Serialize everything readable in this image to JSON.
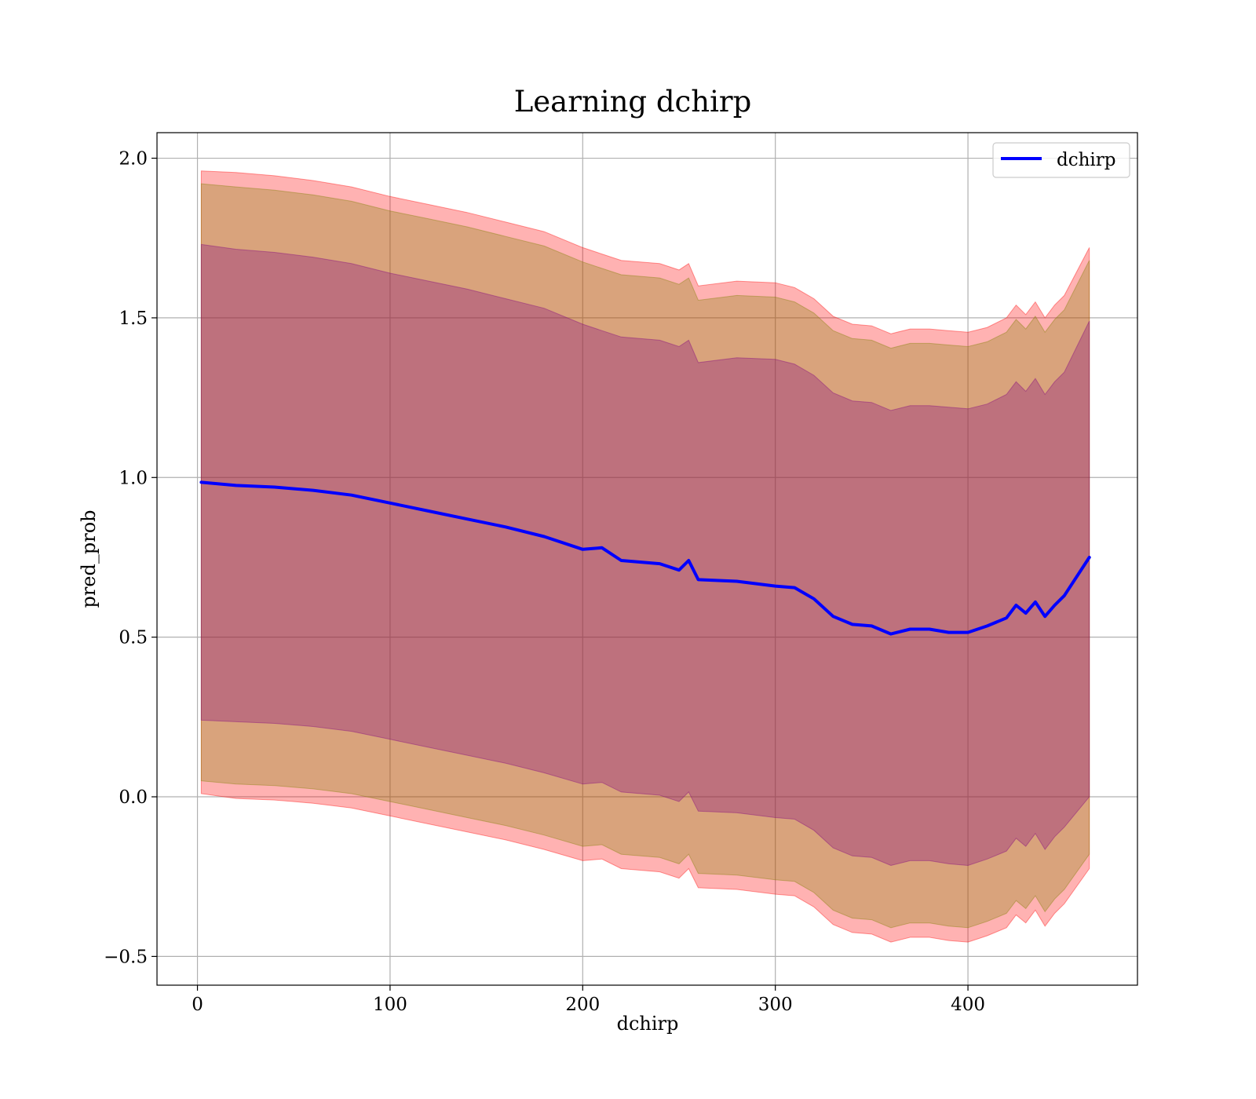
{
  "chart_data": {
    "type": "line",
    "title": "Learning dchirp",
    "xlabel": "dchirp",
    "ylabel": "pred_prob",
    "xlim": [
      -21,
      488
    ],
    "ylim": [
      -0.59,
      2.08
    ],
    "grid": true,
    "legend": {
      "placement": "top-right",
      "entries": [
        "dchirp"
      ]
    },
    "x_ticks": [
      {
        "value": 0,
        "label": "0"
      },
      {
        "value": 100,
        "label": "100"
      },
      {
        "value": 200,
        "label": "200"
      },
      {
        "value": 300,
        "label": "300"
      },
      {
        "value": 400,
        "label": "400"
      }
    ],
    "y_ticks": [
      {
        "value": -0.5,
        "label": "−0.5"
      },
      {
        "value": 0.0,
        "label": "0.0"
      },
      {
        "value": 0.5,
        "label": "0.5"
      },
      {
        "value": 1.0,
        "label": "1.0"
      },
      {
        "value": 1.5,
        "label": "1.5"
      },
      {
        "value": 2.0,
        "label": "2.0"
      }
    ],
    "x": [
      2,
      20,
      40,
      60,
      80,
      100,
      120,
      140,
      160,
      180,
      200,
      210,
      220,
      240,
      250,
      255,
      260,
      280,
      300,
      310,
      320,
      330,
      340,
      350,
      360,
      370,
      380,
      390,
      400,
      410,
      420,
      425,
      430,
      435,
      440,
      445,
      450,
      463
    ],
    "series": [
      {
        "name": "dchirp",
        "color": "#0000ff",
        "y": [
          0.985,
          0.975,
          0.97,
          0.96,
          0.945,
          0.92,
          0.895,
          0.87,
          0.845,
          0.815,
          0.775,
          0.78,
          0.74,
          0.73,
          0.71,
          0.74,
          0.68,
          0.675,
          0.66,
          0.655,
          0.62,
          0.565,
          0.54,
          0.535,
          0.51,
          0.525,
          0.525,
          0.515,
          0.515,
          0.535,
          0.56,
          0.6,
          0.575,
          0.61,
          0.565,
          0.6,
          0.63,
          0.75
        ]
      }
    ],
    "bands": [
      {
        "color": "#ff0000",
        "opacity": 0.3,
        "upper": [
          1.96,
          1.955,
          1.945,
          1.93,
          1.91,
          1.88,
          1.855,
          1.83,
          1.8,
          1.77,
          1.72,
          1.7,
          1.68,
          1.67,
          1.65,
          1.67,
          1.6,
          1.615,
          1.61,
          1.595,
          1.56,
          1.505,
          1.48,
          1.475,
          1.45,
          1.465,
          1.465,
          1.46,
          1.455,
          1.47,
          1.5,
          1.54,
          1.51,
          1.55,
          1.5,
          1.54,
          1.57,
          1.72
        ],
        "lower": [
          0.01,
          -0.005,
          -0.01,
          -0.02,
          -0.035,
          -0.06,
          -0.085,
          -0.11,
          -0.135,
          -0.165,
          -0.2,
          -0.195,
          -0.225,
          -0.235,
          -0.255,
          -0.225,
          -0.285,
          -0.29,
          -0.305,
          -0.31,
          -0.345,
          -0.4,
          -0.425,
          -0.43,
          -0.455,
          -0.44,
          -0.44,
          -0.45,
          -0.455,
          -0.435,
          -0.41,
          -0.37,
          -0.395,
          -0.355,
          -0.405,
          -0.365,
          -0.335,
          -0.225
        ]
      },
      {
        "color": "#808000",
        "opacity": 0.3,
        "upper": [
          1.92,
          1.91,
          1.9,
          1.885,
          1.865,
          1.835,
          1.81,
          1.785,
          1.755,
          1.725,
          1.675,
          1.655,
          1.635,
          1.625,
          1.605,
          1.625,
          1.555,
          1.57,
          1.565,
          1.55,
          1.515,
          1.46,
          1.435,
          1.43,
          1.405,
          1.42,
          1.42,
          1.415,
          1.41,
          1.425,
          1.455,
          1.495,
          1.465,
          1.505,
          1.455,
          1.495,
          1.525,
          1.68
        ],
        "lower": [
          0.05,
          0.04,
          0.035,
          0.025,
          0.01,
          -0.015,
          -0.04,
          -0.065,
          -0.09,
          -0.12,
          -0.155,
          -0.15,
          -0.18,
          -0.19,
          -0.21,
          -0.18,
          -0.24,
          -0.245,
          -0.26,
          -0.265,
          -0.3,
          -0.355,
          -0.38,
          -0.385,
          -0.41,
          -0.395,
          -0.395,
          -0.405,
          -0.41,
          -0.39,
          -0.365,
          -0.325,
          -0.35,
          -0.31,
          -0.36,
          -0.32,
          -0.29,
          -0.18
        ]
      },
      {
        "color": "#800080",
        "opacity": 0.3,
        "upper": [
          1.73,
          1.715,
          1.705,
          1.69,
          1.67,
          1.64,
          1.615,
          1.59,
          1.56,
          1.53,
          1.48,
          1.46,
          1.44,
          1.43,
          1.41,
          1.43,
          1.36,
          1.375,
          1.37,
          1.355,
          1.32,
          1.265,
          1.24,
          1.235,
          1.21,
          1.225,
          1.225,
          1.22,
          1.215,
          1.23,
          1.26,
          1.3,
          1.27,
          1.31,
          1.26,
          1.3,
          1.33,
          1.49
        ],
        "lower": [
          0.24,
          0.235,
          0.23,
          0.22,
          0.205,
          0.18,
          0.155,
          0.13,
          0.105,
          0.075,
          0.04,
          0.045,
          0.015,
          0.005,
          -0.015,
          0.015,
          -0.045,
          -0.05,
          -0.065,
          -0.07,
          -0.105,
          -0.16,
          -0.185,
          -0.19,
          -0.215,
          -0.2,
          -0.2,
          -0.21,
          -0.215,
          -0.195,
          -0.17,
          -0.13,
          -0.155,
          -0.115,
          -0.165,
          -0.125,
          -0.095,
          0.0
        ]
      }
    ]
  }
}
